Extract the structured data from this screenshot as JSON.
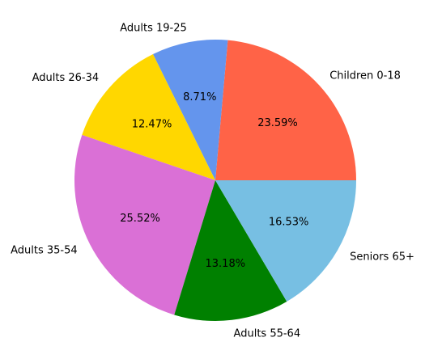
{
  "chart_data": {
    "type": "pie",
    "title": "",
    "start_angle_deg": 0,
    "direction": "counterclockwise",
    "slices": [
      {
        "label": "Children 0-18",
        "value": 23.59,
        "pct_text": "23.59%",
        "color": "#FF6347"
      },
      {
        "label": "Adults 19-25",
        "value": 8.71,
        "pct_text": "8.71%",
        "color": "#6495ED"
      },
      {
        "label": "Adults 26-34",
        "value": 12.47,
        "pct_text": "12.47%",
        "color": "#FFD700"
      },
      {
        "label": "Adults 35-54",
        "value": 25.52,
        "pct_text": "25.52%",
        "color": "#DA70D6"
      },
      {
        "label": "Adults 55-64",
        "value": 13.18,
        "pct_text": "13.18%",
        "color": "#008000"
      },
      {
        "label": "Seniors 65+",
        "value": 16.53,
        "pct_text": "16.53%",
        "color": "#77BFE3"
      }
    ]
  }
}
